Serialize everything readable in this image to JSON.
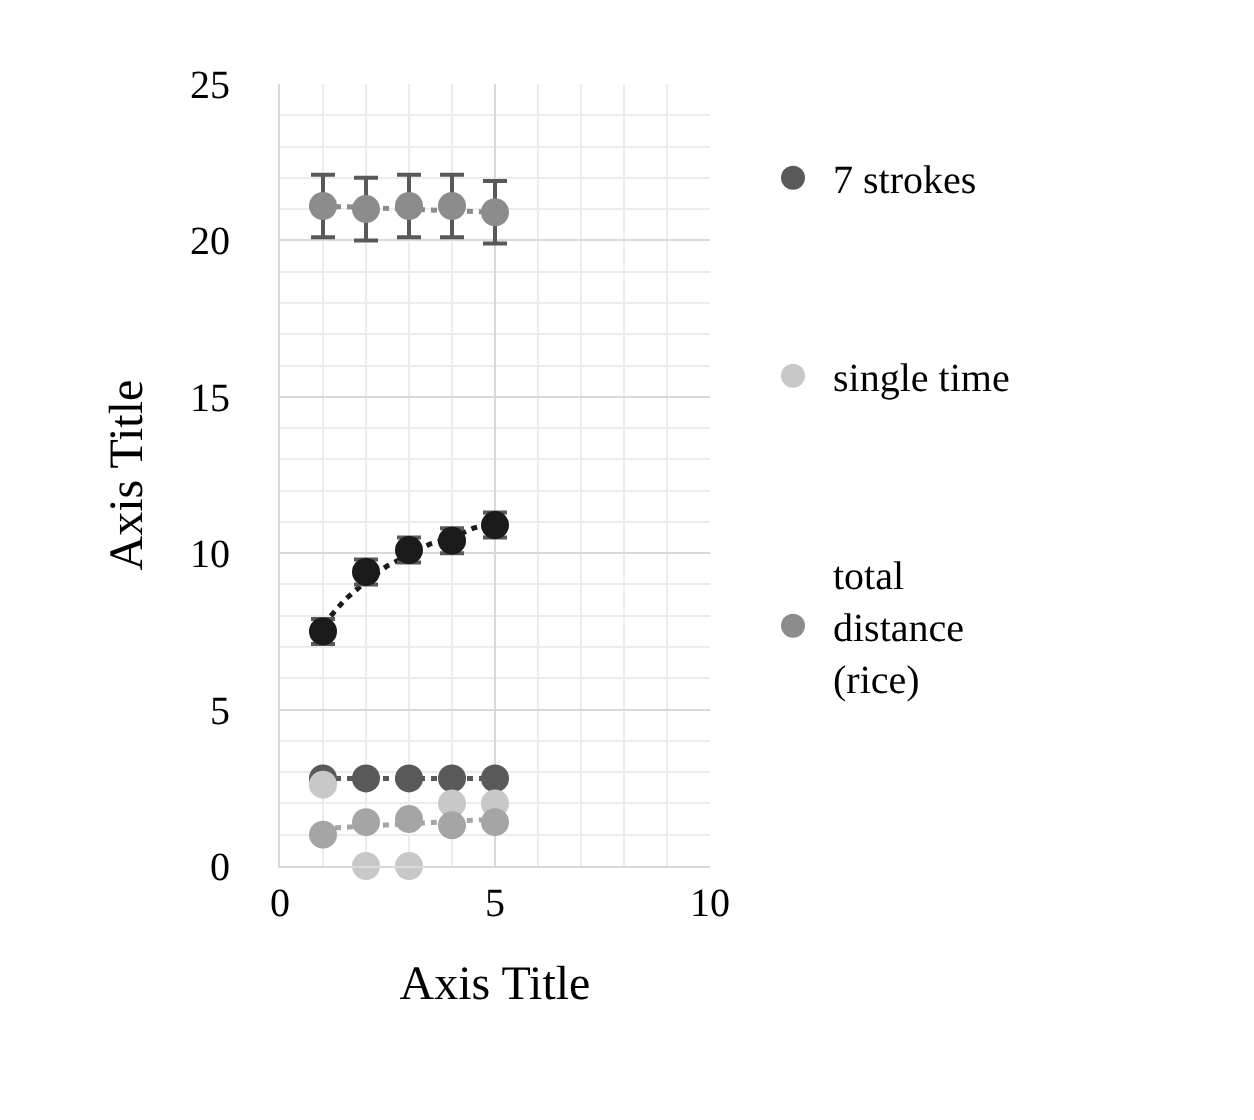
{
  "chart_data": {
    "type": "scatter",
    "xlabel": "Axis Title",
    "ylabel": "Axis Title",
    "x": [
      1,
      2,
      3,
      4,
      5
    ],
    "xlim": [
      0,
      10
    ],
    "xticks": [
      0,
      5,
      10
    ],
    "ylim": [
      0,
      25
    ],
    "yticks": [
      0,
      5,
      10,
      15,
      20,
      25
    ],
    "grid": true,
    "legend": "right",
    "marker": "circle",
    "series": [
      {
        "name": "7 strokes",
        "color": "#595959",
        "values": [
          2.8,
          2.8,
          2.8,
          2.8,
          2.8
        ]
      },
      {
        "name": "single time",
        "color": "#c8c8c8",
        "values": [
          2.6,
          0,
          0,
          2.0,
          2.0
        ]
      },
      {
        "name": "total distance (rice)",
        "color": "#8c8c8c",
        "values": [
          21.1,
          21.0,
          21.1,
          21.1,
          20.9
        ],
        "errors": [
          1,
          1,
          1,
          1,
          1
        ]
      },
      {
        "color": "#a5a5a5",
        "values": [
          1.0,
          1.4,
          1.5,
          1.3,
          1.4
        ]
      },
      {
        "color": "#1a1a1a",
        "values": [
          7.5,
          9.4,
          10.1,
          10.4,
          10.9
        ],
        "errors": [
          0.4,
          0.4,
          0.4,
          0.4,
          0.4
        ]
      },
      {
        "type": "line",
        "color": "#595959",
        "line_style": "dotted",
        "marker": "none",
        "x": [
          1,
          5
        ],
        "values": [
          2.8,
          2.8
        ]
      },
      {
        "type": "line",
        "color": "#8c8c8c",
        "line_style": "dotted",
        "marker": "none",
        "x": [
          1,
          5
        ],
        "values": [
          21.1,
          20.9
        ]
      },
      {
        "type": "line",
        "color": "#a5a5a5",
        "line_style": "dotted",
        "marker": "none",
        "x": [
          1,
          5
        ],
        "values": [
          1.2,
          1.5
        ]
      },
      {
        "type": "line",
        "color": "#1a1a1a",
        "line_style": "dotted",
        "marker": "none",
        "x": [
          1,
          1.5,
          2,
          2.5,
          3,
          3.5,
          4,
          4.5,
          5
        ],
        "values": [
          7.7,
          8.5,
          9.1,
          9.6,
          9.95,
          10.3,
          10.5,
          10.8,
          11.0
        ]
      }
    ]
  }
}
